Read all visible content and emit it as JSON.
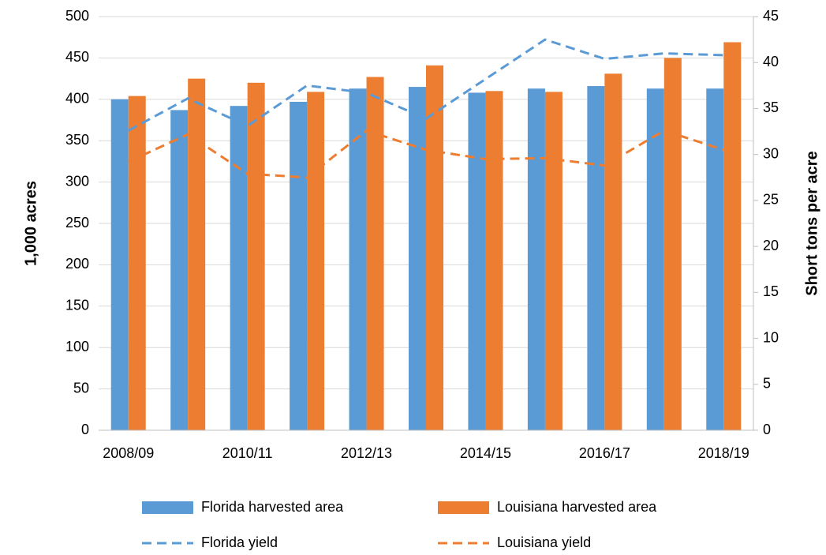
{
  "chart_data": {
    "type": "bar",
    "categories": [
      "2008/09",
      null,
      "2010/11",
      null,
      "2012/13",
      null,
      "2014/15",
      null,
      "2016/17",
      null,
      "2018/19"
    ],
    "ylabel": "1,000 acres",
    "y2label": "Short tons per acre",
    "ylim": [
      0,
      500
    ],
    "yticks": [
      0,
      50,
      100,
      150,
      200,
      250,
      300,
      350,
      400,
      450,
      500
    ],
    "y2lim": [
      0,
      45
    ],
    "y2ticks": [
      0,
      5,
      10,
      15,
      20,
      25,
      30,
      35,
      40,
      45
    ],
    "grid": true,
    "legend": "bottom",
    "series": [
      {
        "name": "Florida harvested area",
        "type": "bar",
        "color": "#5b9bd5",
        "values": [
          400,
          387,
          392,
          397,
          413,
          415,
          408,
          413,
          416,
          413,
          413
        ]
      },
      {
        "name": "Louisiana harvested area",
        "type": "bar",
        "color": "#ed7d31",
        "values": [
          404,
          425,
          420,
          409,
          427,
          441,
          410,
          409,
          431,
          450,
          469
        ]
      },
      {
        "name": "Florida yield",
        "type": "line",
        "dashed": true,
        "axis": "y2",
        "color": "#5b9bd5",
        "values": [
          32.6,
          36.1,
          33.1,
          37.5,
          36.7,
          33.9,
          38.2,
          42.5,
          40.4,
          41.0,
          40.8
        ]
      },
      {
        "name": "Louisiana yield",
        "type": "line",
        "dashed": true,
        "axis": "y2",
        "color": "#ed7d31",
        "values": [
          29.2,
          32.2,
          27.9,
          27.5,
          32.6,
          30.5,
          29.5,
          29.6,
          28.8,
          32.6,
          30.5
        ]
      }
    ]
  }
}
